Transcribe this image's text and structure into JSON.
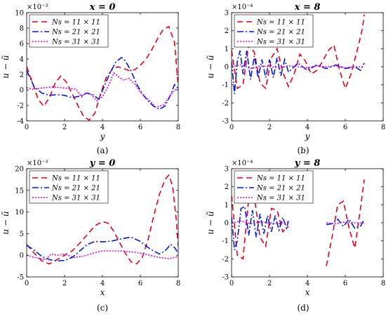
{
  "chart_data": [
    {
      "panel": "a",
      "type": "line",
      "title": "x = 0",
      "caption": "(a)",
      "xlabel": "y",
      "ylabel": "u − ũ",
      "multiplier": "×10⁻³",
      "xlim": [
        0,
        8
      ],
      "ylim": [
        -4,
        10
      ],
      "xticks": [
        0,
        2,
        4,
        6,
        8
      ],
      "yticks": [
        -4,
        -2,
        0,
        2,
        4,
        6,
        8,
        10
      ],
      "legend_position": "top-left",
      "series": [
        {
          "name": "Ns = 11 × 11",
          "color": "#e8001a",
          "dash": "8,5",
          "x": [
            0,
            0.3,
            0.6,
            0.9,
            1.2,
            1.5,
            1.8,
            2.1,
            2.4,
            2.7,
            3.0,
            3.3,
            3.6,
            3.9,
            4.2,
            4.5,
            4.8,
            5.1,
            5.4,
            5.7,
            6.0,
            6.3,
            6.6,
            6.9,
            7.2,
            7.5,
            7.8,
            8.0
          ],
          "y": [
            3.0,
            1.0,
            -1.2,
            -2.1,
            -1.0,
            0.9,
            1.8,
            1.0,
            -0.5,
            -2.0,
            -3.4,
            -3.9,
            -3.0,
            -0.5,
            1.6,
            2.6,
            3.0,
            2.8,
            2.5,
            2.6,
            3.2,
            4.0,
            5.2,
            6.6,
            7.8,
            8.2,
            6.2,
            0.5
          ]
        },
        {
          "name": "Ns = 21 × 21",
          "color": "#0019e0",
          "dash": "9,3,2,3",
          "x": [
            0,
            0.4,
            0.8,
            1.2,
            1.6,
            2.0,
            2.4,
            2.8,
            3.2,
            3.5,
            3.8,
            4.1,
            4.4,
            4.7,
            5.0,
            5.2,
            5.5,
            5.8,
            6.1,
            6.4,
            6.7,
            7.0,
            7.3,
            7.6,
            7.8,
            8.0
          ],
          "y": [
            2.5,
            0.4,
            -0.4,
            -0.7,
            -0.6,
            -0.7,
            -1.0,
            -0.8,
            -0.4,
            -0.6,
            -1.2,
            0.5,
            2.2,
            3.6,
            4.2,
            3.8,
            2.5,
            0.8,
            -0.5,
            -1.4,
            -2.1,
            -2.5,
            -2.1,
            -0.6,
            0.7,
            0.2
          ]
        },
        {
          "name": "Ns = 31 × 31",
          "color": "#e000e0",
          "dash": "2,2",
          "x": [
            0,
            0.3,
            0.6,
            1.0,
            1.4,
            1.8,
            2.2,
            2.6,
            2.9,
            3.1,
            3.4,
            3.7,
            4.0,
            4.3,
            4.6,
            4.9,
            5.1,
            5.4,
            5.7,
            6.0,
            6.4,
            6.8,
            7.2,
            7.5,
            7.8,
            8.0
          ],
          "y": [
            0.3,
            0.1,
            0.2,
            0.3,
            0.4,
            0.3,
            0.2,
            0.1,
            -0.9,
            -0.4,
            -0.6,
            -1.4,
            -0.9,
            0.5,
            2.2,
            1.6,
            1.3,
            1.5,
            0.8,
            -0.3,
            -1.2,
            -2.2,
            -2.0,
            -1.0,
            0.0,
            0.1
          ]
        }
      ]
    },
    {
      "panel": "b",
      "type": "line",
      "title": "x = 8",
      "caption": "(b)",
      "xlabel": "y",
      "ylabel": "u − ũ",
      "multiplier": "×10⁻⁴",
      "xlim": [
        0,
        8
      ],
      "ylim": [
        -3,
        3
      ],
      "xticks": [
        0,
        2,
        4,
        6,
        8
      ],
      "yticks": [
        -3,
        -2,
        -1,
        0,
        1,
        2,
        3
      ],
      "legend_position": "top-left",
      "series": [
        {
          "name": "Ns = 11 × 11",
          "color": "#e8001a",
          "dash": "8,5",
          "x": [
            0,
            0.3,
            0.6,
            0.9,
            1.2,
            1.5,
            1.8,
            2.1,
            2.4,
            2.7,
            3.0,
            3.3,
            3.6,
            3.9,
            4.2,
            4.5,
            4.8,
            5.1,
            5.4,
            5.7,
            6.0,
            6.3,
            6.6,
            6.9,
            7.0
          ],
          "y": [
            0.9,
            -1.2,
            -1.0,
            1.2,
            0.8,
            -0.9,
            -1.2,
            0.5,
            1.0,
            -0.3,
            -1.1,
            -0.4,
            0.7,
            0.3,
            -0.4,
            -0.2,
            0.3,
            0.9,
            1.2,
            -0.2,
            -1.2,
            -0.4,
            0.8,
            2.1,
            2.9
          ]
        },
        {
          "name": "Ns = 21 × 21",
          "color": "#0019e0",
          "dash": "9,3,2,3",
          "x": [
            0,
            0.15,
            0.3,
            0.45,
            0.6,
            0.8,
            1.0,
            1.2,
            1.4,
            1.6,
            1.8,
            2.0,
            2.2,
            2.4,
            2.6,
            2.8,
            3.0,
            3.5,
            4.0,
            4.5,
            5.0,
            5.5,
            6.0,
            6.5,
            6.8,
            7.0
          ],
          "y": [
            0.3,
            -1.5,
            0.3,
            0.9,
            -0.4,
            0.9,
            -0.7,
            0.6,
            -0.6,
            0.4,
            -0.6,
            0.4,
            -0.6,
            0.5,
            -0.5,
            0.4,
            -0.3,
            0.2,
            -0.2,
            0.1,
            -0.1,
            0.1,
            -0.1,
            0.0,
            -0.2,
            0.2
          ]
        },
        {
          "name": "Ns = 31 × 31",
          "color": "#e000e0",
          "dash": "2,2",
          "x": [
            0,
            0.5,
            1.0,
            1.5,
            2.0,
            2.5,
            3.0,
            3.5,
            4.0,
            4.5,
            5.0,
            5.5,
            6.0,
            6.5,
            7.0
          ],
          "y": [
            0.0,
            0.1,
            -0.1,
            0.05,
            0.0,
            -0.05,
            0.05,
            0.0,
            -0.05,
            0.05,
            0.0,
            0.05,
            -0.05,
            0.0,
            0.0
          ]
        }
      ]
    },
    {
      "panel": "c",
      "type": "line",
      "title": "y = 0",
      "caption": "(c)",
      "xlabel": "x",
      "ylabel": "u − ũ",
      "multiplier": "×10⁻³",
      "xlim": [
        0,
        8
      ],
      "ylim": [
        -5,
        20
      ],
      "xticks": [
        0,
        2,
        4,
        6,
        8
      ],
      "yticks": [
        -5,
        0,
        5,
        10,
        15,
        20
      ],
      "legend_position": "top-left",
      "series": [
        {
          "name": "Ns = 11 × 11",
          "color": "#e8001a",
          "dash": "8,5",
          "x": [
            0,
            0.4,
            0.8,
            1.2,
            1.6,
            2.0,
            2.4,
            2.8,
            3.2,
            3.6,
            4.0,
            4.3,
            4.6,
            4.9,
            5.2,
            5.5,
            5.8,
            6.1,
            6.4,
            6.7,
            7.0,
            7.3,
            7.5,
            7.7,
            7.9,
            8.0
          ],
          "y": [
            2.5,
            0.5,
            -1.3,
            -2.0,
            -1.0,
            0.0,
            1.0,
            2.8,
            4.8,
            6.8,
            7.8,
            7.4,
            5.5,
            3.0,
            0.5,
            -1.5,
            -2.0,
            -0.5,
            3.5,
            9.0,
            14.0,
            17.5,
            18.5,
            16.0,
            8.0,
            2.0
          ]
        },
        {
          "name": "Ns = 21 × 21",
          "color": "#0019e0",
          "dash": "9,3,2,3",
          "x": [
            0,
            0.4,
            0.8,
            1.2,
            1.6,
            2.0,
            2.4,
            2.8,
            3.2,
            3.6,
            4.0,
            4.5,
            5.0,
            5.5,
            6.0,
            6.5,
            7.0,
            7.3,
            7.6,
            7.8,
            8.0
          ],
          "y": [
            2.3,
            1.2,
            -0.3,
            -1.0,
            -1.3,
            -1.2,
            -0.5,
            1.0,
            2.5,
            3.2,
            3.1,
            3.3,
            3.8,
            4.2,
            3.2,
            1.5,
            0.3,
            1.0,
            2.5,
            1.8,
            0.5
          ]
        },
        {
          "name": "Ns = 31 × 31",
          "color": "#e000e0",
          "dash": "2,2",
          "x": [
            0,
            0.5,
            1.0,
            1.3,
            1.6,
            2.0,
            2.5,
            3.0,
            3.5,
            4.0,
            4.5,
            5.0,
            5.5,
            6.0,
            6.5,
            7.0,
            7.5,
            8.0
          ],
          "y": [
            0.0,
            -0.6,
            -1.0,
            0.3,
            0.0,
            0.3,
            -0.5,
            -0.2,
            0.5,
            1.0,
            1.0,
            1.0,
            0.8,
            0.5,
            0.0,
            -0.5,
            -0.8,
            -0.3
          ]
        }
      ]
    },
    {
      "panel": "d",
      "type": "line",
      "title": "y = 8",
      "caption": "(d)",
      "xlabel": "x",
      "ylabel": "u − ũ",
      "multiplier": "×10⁻⁴",
      "xlim": [
        0,
        8
      ],
      "ylim": [
        -3,
        3
      ],
      "xticks": [
        0,
        2,
        4,
        6,
        8
      ],
      "yticks": [
        -3,
        -2,
        -1,
        0,
        1,
        2,
        3
      ],
      "legend_position": "top-left",
      "series": [
        {
          "name": "Ns = 11 × 11",
          "color": "#e8001a",
          "dash": "8,5",
          "segments": [
            {
              "x": [
                0,
                0.3,
                0.6,
                0.9,
                1.2,
                1.5,
                1.8,
                2.1,
                2.4,
                2.7,
                3.0
              ],
              "y": [
                1.5,
                -1.8,
                -2.0,
                1.3,
                1.4,
                -0.8,
                -1.3,
                0.8,
                0.7,
                -0.5,
                -0.2
              ]
            },
            {
              "x": [
                5.0,
                5.3,
                5.6,
                5.9,
                6.2,
                6.5,
                6.8,
                7.0
              ],
              "y": [
                -2.4,
                -0.8,
                1.0,
                1.2,
                -0.3,
                -1.4,
                0.8,
                2.4
              ]
            }
          ]
        },
        {
          "name": "Ns = 21 × 21",
          "color": "#0019e0",
          "dash": "9,3,2,3",
          "segments": [
            {
              "x": [
                0,
                0.15,
                0.3,
                0.5,
                0.7,
                0.9,
                1.1,
                1.3,
                1.5,
                1.7,
                1.9,
                2.1,
                2.3,
                2.5,
                2.7,
                2.9,
                3.0
              ],
              "y": [
                0.3,
                -1.5,
                -1.0,
                0.8,
                0.9,
                -0.7,
                0.7,
                -0.8,
                0.5,
                -0.6,
                0.4,
                -0.5,
                0.4,
                -0.4,
                0.3,
                -0.3,
                0.1
              ]
            },
            {
              "x": [
                5.0,
                5.3,
                5.6,
                5.9,
                6.2,
                6.5,
                6.8,
                7.0
              ],
              "y": [
                -0.1,
                -0.05,
                0.2,
                -0.2,
                0.2,
                -0.3,
                -0.2,
                0.2
              ]
            }
          ]
        },
        {
          "name": "Ns = 31 × 31",
          "color": "#e000e0",
          "dash": "2,2",
          "segments": [
            {
              "x": [
                0,
                0.5,
                1.0,
                1.5,
                2.0,
                2.5,
                3.0
              ],
              "y": [
                0.0,
                0.1,
                -0.05,
                0.05,
                0.0,
                -0.05,
                0.05
              ]
            },
            {
              "x": [
                5.0,
                5.5,
                6.0,
                6.5,
                7.0
              ],
              "y": [
                0.0,
                -0.05,
                0.05,
                0.0,
                0.0
              ]
            }
          ]
        }
      ]
    }
  ]
}
